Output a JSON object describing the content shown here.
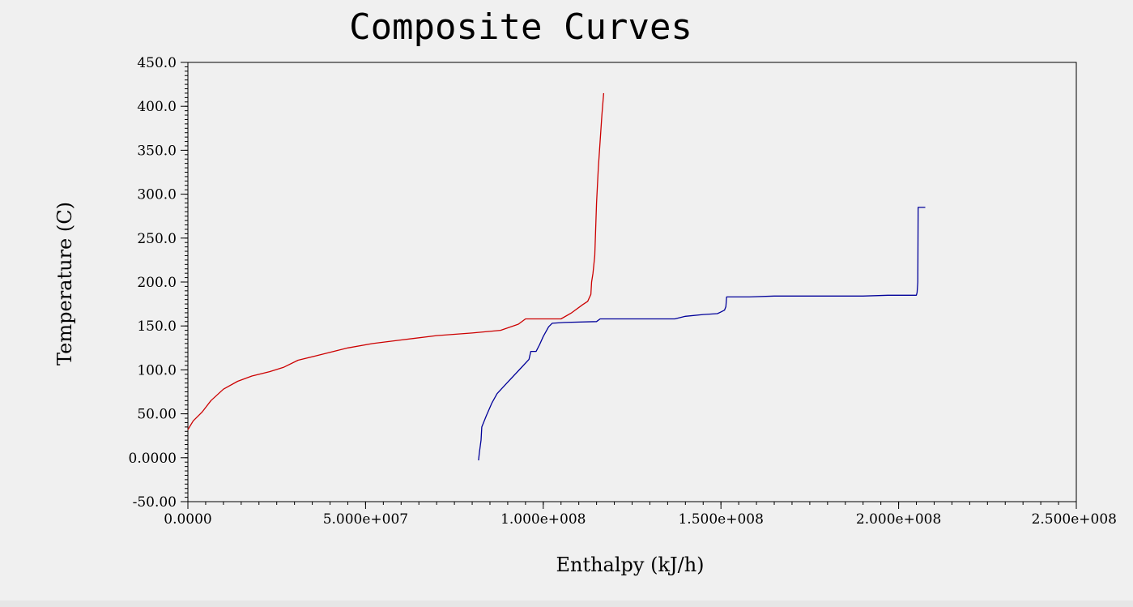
{
  "chart_data": {
    "type": "line",
    "title": "Composite Curves",
    "xlabel": "Enthalpy (kJ/h)",
    "ylabel": "Temperature (C)",
    "xlim": [
      0,
      250000000
    ],
    "ylim": [
      -50,
      450
    ],
    "x_ticks": [
      0,
      50000000,
      100000000,
      150000000,
      200000000,
      250000000
    ],
    "x_tick_labels": [
      "0.0000",
      "5.000e+007",
      "1.000e+008",
      "1.500e+008",
      "2.000e+008",
      "2.500e+008"
    ],
    "y_ticks": [
      -50,
      0,
      50,
      100,
      150,
      200,
      250,
      300,
      350,
      400,
      450
    ],
    "y_tick_labels": [
      "-50.00",
      "0.0000",
      "50.00",
      "100.0",
      "150.0",
      "200.0",
      "250.0",
      "300.0",
      "350.0",
      "400.0",
      "450.0"
    ],
    "grid": false,
    "legend": "none",
    "series": [
      {
        "color": "#cc0000",
        "points": [
          [
            0,
            32
          ],
          [
            1500000,
            42
          ],
          [
            4000000,
            52
          ],
          [
            6500000,
            65
          ],
          [
            10000000,
            78
          ],
          [
            14000000,
            87
          ],
          [
            18000000,
            93
          ],
          [
            23000000,
            98
          ],
          [
            27000000,
            103
          ],
          [
            31000000,
            111
          ],
          [
            36000000,
            116
          ],
          [
            40000000,
            120
          ],
          [
            45000000,
            125
          ],
          [
            52000000,
            130
          ],
          [
            60000000,
            134
          ],
          [
            70000000,
            139
          ],
          [
            80000000,
            142
          ],
          [
            88000000,
            145
          ],
          [
            93000000,
            152
          ],
          [
            95000000,
            158
          ],
          [
            100000000,
            158
          ],
          [
            105000000,
            158
          ],
          [
            108000000,
            165
          ],
          [
            111000000,
            174
          ],
          [
            112500000,
            178
          ],
          [
            113400000,
            186
          ],
          [
            113600000,
            200
          ],
          [
            114000000,
            210
          ],
          [
            114500000,
            230
          ],
          [
            115000000,
            290
          ],
          [
            115500000,
            330
          ],
          [
            116000000,
            360
          ],
          [
            116500000,
            390
          ],
          [
            117000000,
            415
          ]
        ]
      },
      {
        "color": "#000099",
        "points": [
          [
            81800000,
            -3
          ],
          [
            82000000,
            5
          ],
          [
            82500000,
            20
          ],
          [
            82700000,
            35
          ],
          [
            84000000,
            48
          ],
          [
            85500000,
            62
          ],
          [
            87000000,
            73
          ],
          [
            90000000,
            86
          ],
          [
            93000000,
            99
          ],
          [
            96000000,
            112
          ],
          [
            96500000,
            121
          ],
          [
            98000000,
            121
          ],
          [
            99000000,
            129
          ],
          [
            100000000,
            138
          ],
          [
            101500000,
            149
          ],
          [
            102500000,
            153
          ],
          [
            106000000,
            154
          ],
          [
            115000000,
            155
          ],
          [
            116000000,
            158
          ],
          [
            128000000,
            158
          ],
          [
            137000000,
            158
          ],
          [
            140000000,
            161
          ],
          [
            145000000,
            163
          ],
          [
            149000000,
            164
          ],
          [
            150000000,
            166
          ],
          [
            151000000,
            168
          ],
          [
            151400000,
            172
          ],
          [
            151500000,
            178
          ],
          [
            151600000,
            183
          ],
          [
            158000000,
            183
          ],
          [
            165000000,
            184
          ],
          [
            190000000,
            184
          ],
          [
            197000000,
            185
          ],
          [
            205000000,
            185
          ],
          [
            205200000,
            188
          ],
          [
            205400000,
            200
          ],
          [
            205500000,
            285
          ],
          [
            207500000,
            285
          ]
        ]
      }
    ]
  }
}
